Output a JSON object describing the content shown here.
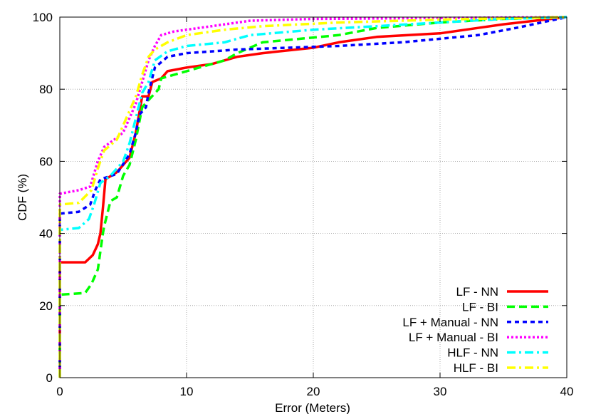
{
  "chart_data": {
    "type": "line",
    "title": "",
    "xlabel": "Error (Meters)",
    "ylabel": "CDF (%)",
    "xlim": [
      0,
      40
    ],
    "ylim": [
      0,
      100
    ],
    "x_ticks": [
      "0",
      "10",
      "20",
      "30",
      "40"
    ],
    "y_ticks": [
      "0",
      "20",
      "40",
      "60",
      "80",
      "100"
    ],
    "grid": true,
    "legend_position": "bottom-right",
    "series": [
      {
        "name": "LF - NN",
        "color": "#ff0000",
        "dash": "solid",
        "points": [
          [
            0,
            0
          ],
          [
            0,
            32
          ],
          [
            2,
            32
          ],
          [
            2.6,
            34
          ],
          [
            3,
            37
          ],
          [
            3.2,
            40
          ],
          [
            3.4,
            47
          ],
          [
            3.6,
            55
          ],
          [
            4.5,
            57
          ],
          [
            5,
            59
          ],
          [
            5.5,
            61
          ],
          [
            6,
            68
          ],
          [
            6.3,
            74
          ],
          [
            6.5,
            78
          ],
          [
            7,
            78
          ],
          [
            7.3,
            82
          ],
          [
            8,
            83
          ],
          [
            8.5,
            85
          ],
          [
            10,
            86
          ],
          [
            12,
            87
          ],
          [
            14,
            89
          ],
          [
            16,
            90
          ],
          [
            20,
            91.5
          ],
          [
            22,
            93
          ],
          [
            25,
            94.5
          ],
          [
            30,
            95.5
          ],
          [
            33,
            97
          ],
          [
            35,
            98
          ],
          [
            40,
            100
          ]
        ]
      },
      {
        "name": "LF - BI",
        "color": "#00ff00",
        "dash": "long",
        "points": [
          [
            0,
            0
          ],
          [
            0,
            23
          ],
          [
            2,
            23.5
          ],
          [
            2.5,
            26
          ],
          [
            3,
            30
          ],
          [
            3.4,
            40
          ],
          [
            3.5,
            42
          ],
          [
            4,
            49
          ],
          [
            4.5,
            50
          ],
          [
            5,
            56
          ],
          [
            5.5,
            59
          ],
          [
            6,
            66
          ],
          [
            6.5,
            75
          ],
          [
            7,
            77
          ],
          [
            7.8,
            80
          ],
          [
            8,
            83
          ],
          [
            10,
            85
          ],
          [
            13,
            88
          ],
          [
            14,
            90
          ],
          [
            16,
            93
          ],
          [
            22,
            95
          ],
          [
            25,
            97
          ],
          [
            30,
            98.5
          ],
          [
            35,
            99.5
          ],
          [
            40,
            100
          ]
        ]
      },
      {
        "name": "LF + Manual - NN",
        "color": "#0000ff",
        "dash": "short",
        "points": [
          [
            0,
            0
          ],
          [
            0,
            45.5
          ],
          [
            1.5,
            46
          ],
          [
            2.4,
            48
          ],
          [
            2.8,
            52
          ],
          [
            3.2,
            55
          ],
          [
            4.5,
            56.5
          ],
          [
            5.5,
            62
          ],
          [
            6,
            68
          ],
          [
            6.3,
            73
          ],
          [
            6.8,
            75
          ],
          [
            7,
            79
          ],
          [
            7.5,
            86
          ],
          [
            8.5,
            89
          ],
          [
            10,
            90
          ],
          [
            12,
            90.5
          ],
          [
            14,
            91
          ],
          [
            18,
            91.5
          ],
          [
            22,
            92
          ],
          [
            27,
            93
          ],
          [
            30,
            94
          ],
          [
            33,
            95
          ],
          [
            36,
            97
          ],
          [
            40,
            100
          ]
        ]
      },
      {
        "name": "LF + Manual - BI",
        "color": "#ff00ff",
        "dash": "dotted",
        "points": [
          [
            0,
            0
          ],
          [
            0,
            51
          ],
          [
            1.5,
            52
          ],
          [
            2.4,
            53
          ],
          [
            3,
            60
          ],
          [
            3.5,
            64
          ],
          [
            4.3,
            66
          ],
          [
            5,
            68
          ],
          [
            5.5,
            72
          ],
          [
            6,
            76
          ],
          [
            6.5,
            82
          ],
          [
            7,
            88
          ],
          [
            7.5,
            92
          ],
          [
            8,
            95
          ],
          [
            9,
            96
          ],
          [
            12,
            97.5
          ],
          [
            15,
            99
          ],
          [
            20,
            99.5
          ],
          [
            40,
            100
          ]
        ]
      },
      {
        "name": "HLF - NN",
        "color": "#00ffff",
        "dash": "dashdot",
        "points": [
          [
            0,
            0
          ],
          [
            0,
            41
          ],
          [
            1.5,
            41.5
          ],
          [
            2.3,
            44
          ],
          [
            2.7,
            48
          ],
          [
            3.2,
            54
          ],
          [
            4,
            56
          ],
          [
            5,
            60
          ],
          [
            5.5,
            65
          ],
          [
            6,
            72
          ],
          [
            6.5,
            79
          ],
          [
            7,
            82
          ],
          [
            7.5,
            88
          ],
          [
            8.5,
            90.5
          ],
          [
            10,
            92
          ],
          [
            13,
            93
          ],
          [
            15,
            95
          ],
          [
            20,
            96.5
          ],
          [
            25,
            97.5
          ],
          [
            30,
            98.5
          ],
          [
            35,
            99.5
          ],
          [
            40,
            100
          ]
        ]
      },
      {
        "name": "HLF - BI",
        "color": "#ffff00",
        "dash": "dashdot",
        "points": [
          [
            0,
            0
          ],
          [
            0,
            48
          ],
          [
            1.5,
            48.5
          ],
          [
            2.5,
            52
          ],
          [
            3,
            58
          ],
          [
            3.5,
            63
          ],
          [
            4.5,
            66
          ],
          [
            5,
            70
          ],
          [
            5.5,
            74
          ],
          [
            6,
            78
          ],
          [
            6.5,
            84
          ],
          [
            7,
            89
          ],
          [
            7.5,
            91
          ],
          [
            8.5,
            93
          ],
          [
            10,
            95
          ],
          [
            13,
            96.5
          ],
          [
            16,
            97.5
          ],
          [
            22,
            98.5
          ],
          [
            30,
            99.3
          ],
          [
            40,
            100
          ]
        ]
      }
    ]
  }
}
